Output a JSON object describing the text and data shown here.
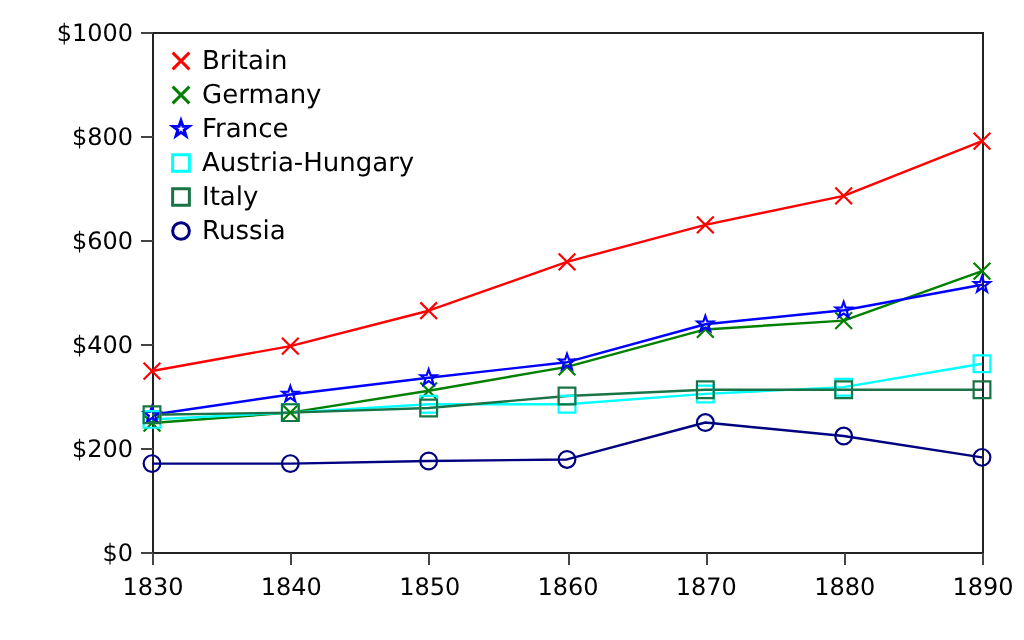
{
  "chart_data": {
    "type": "line",
    "x": [
      1830,
      1840,
      1850,
      1860,
      1870,
      1880,
      1890
    ],
    "xlim": [
      1830,
      1890
    ],
    "xticks": [
      1830,
      1840,
      1850,
      1860,
      1870,
      1880,
      1890
    ],
    "ylim": [
      0,
      1000
    ],
    "yticks": [
      {
        "value": 0,
        "label": "$0"
      },
      {
        "value": 200,
        "label": "$200"
      },
      {
        "value": 400,
        "label": "$400"
      },
      {
        "value": 600,
        "label": "$600"
      },
      {
        "value": 800,
        "label": "$800"
      },
      {
        "value": 1000,
        "label": "$1000"
      }
    ],
    "grid": false,
    "legend": "top left",
    "line_style": "solid",
    "series": [
      {
        "name": "Britain",
        "color": "#ff0000",
        "marker": "cross",
        "values": [
          348,
          396,
          464,
          558,
          629,
          685,
          790
        ]
      },
      {
        "name": "Germany",
        "color": "#008000",
        "marker": "cross",
        "values": [
          248,
          268,
          310,
          356,
          428,
          445,
          540
        ]
      },
      {
        "name": "France",
        "color": "#0000ff",
        "marker": "star",
        "values": [
          264,
          303,
          335,
          365,
          438,
          465,
          514
        ]
      },
      {
        "name": "Austria-Hungary",
        "color": "#00ffff",
        "marker": "square",
        "values": [
          255,
          268,
          284,
          284,
          304,
          317,
          362
        ]
      },
      {
        "name": "Italy",
        "color": "#1a7346",
        "marker": "square",
        "values": [
          264,
          268,
          277,
          300,
          312,
          312,
          312
        ]
      },
      {
        "name": "Russia",
        "color": "#000080",
        "marker": "circle",
        "values": [
          170,
          170,
          175,
          178,
          249,
          223,
          182
        ]
      }
    ]
  }
}
